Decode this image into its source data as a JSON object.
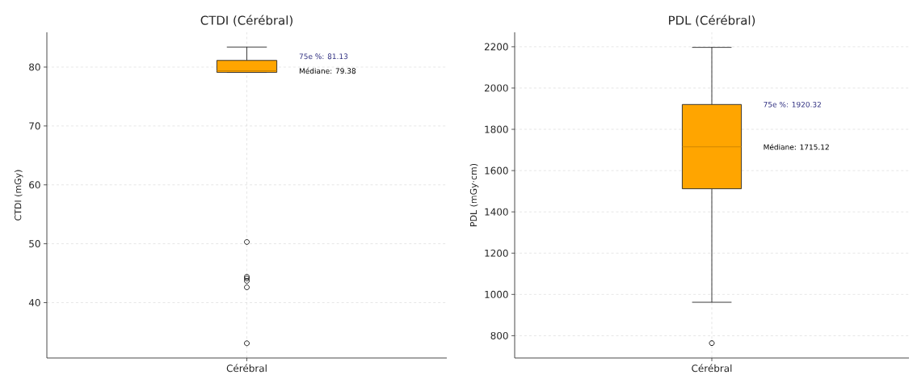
{
  "chart_data": [
    {
      "type": "box",
      "title": "CTDI (Cérébral)",
      "ylabel": "CTDI (mGy)",
      "categories": [
        "Cérébral"
      ],
      "series": [
        {
          "color": "#ffa500",
          "boxes": [
            {
              "low": 79.1,
              "q1": 79.1,
              "median": 79.38,
              "q3": 81.13,
              "high": 83.4,
              "outliers": [
                50.3,
                44.4,
                44.1,
                43.7,
                42.6,
                33.1
              ]
            }
          ]
        }
      ],
      "ylim": [
        30.6,
        85.9
      ],
      "yticks": [
        40,
        50,
        60,
        70,
        80
      ],
      "grid": true,
      "annotations": [
        "75e %: 81.13",
        "Médiane: 79.38"
      ]
    },
    {
      "type": "box",
      "title": "PDL (Cérébral)",
      "ylabel": "PDL (mGy·cm)",
      "categories": [
        "Cérébral"
      ],
      "series": [
        {
          "color": "#ffa500",
          "boxes": [
            {
              "low": 962,
              "q1": 1512,
              "median": 1715.12,
              "q3": 1920.32,
              "high": 2197,
              "outliers": [
                764
              ]
            }
          ]
        }
      ],
      "ylim": [
        692,
        2270
      ],
      "yticks": [
        800,
        1000,
        1200,
        1400,
        1600,
        1800,
        2000,
        2200
      ],
      "grid": true,
      "annotations": [
        "75e %: 1920.32",
        "Médiane: 1715.12"
      ]
    }
  ]
}
